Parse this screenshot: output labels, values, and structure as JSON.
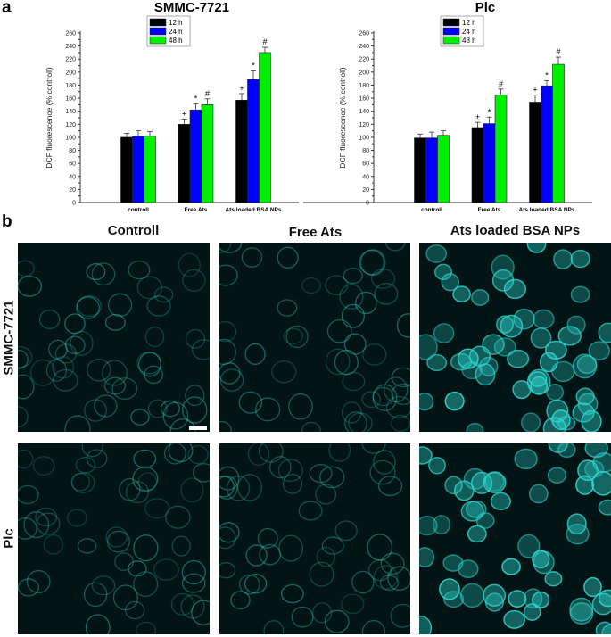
{
  "panel_labels": {
    "a": "a",
    "b": "b"
  },
  "chart_data": [
    {
      "type": "bar",
      "title": "SMMC-7721",
      "ylabel": "DCF fluorescence (% controll)",
      "xlabel": "",
      "ylim": [
        0,
        260
      ],
      "yticks": [
        0,
        20,
        40,
        60,
        80,
        100,
        120,
        140,
        160,
        180,
        200,
        220,
        240,
        260
      ],
      "categories": [
        "controll",
        "Free Ats",
        "Ats loaded BSA NPs"
      ],
      "series": [
        {
          "name": "12 h",
          "color": "#000000",
          "values": [
            100,
            120,
            157
          ],
          "errors": [
            6,
            8,
            10
          ],
          "markers": [
            "",
            "+",
            "+"
          ]
        },
        {
          "name": "24 h",
          "color": "#0000ff",
          "values": [
            102,
            142,
            189
          ],
          "errors": [
            8,
            9,
            13
          ],
          "markers": [
            "",
            "*",
            "*"
          ]
        },
        {
          "name": "48 h",
          "color": "#00ee00",
          "values": [
            102,
            150,
            230
          ],
          "errors": [
            7,
            9,
            8
          ],
          "markers": [
            "",
            "#",
            "#"
          ]
        }
      ],
      "legend": "top-center",
      "grid": false
    },
    {
      "type": "bar",
      "title": "Plc",
      "ylabel": "DCF fluorescence (% controll)",
      "xlabel": "",
      "ylim": [
        0,
        260
      ],
      "yticks": [
        0,
        20,
        40,
        60,
        80,
        100,
        120,
        140,
        160,
        180,
        200,
        220,
        240,
        260
      ],
      "categories": [
        "controll",
        "Free Ats",
        "Ats loaded BSA NPs"
      ],
      "series": [
        {
          "name": "12 h",
          "color": "#000000",
          "values": [
            99,
            115,
            154
          ],
          "errors": [
            6,
            8,
            11
          ],
          "markers": [
            "",
            "+",
            "+"
          ]
        },
        {
          "name": "24 h",
          "color": "#0000ff",
          "values": [
            99,
            121,
            179
          ],
          "errors": [
            9,
            10,
            8
          ],
          "markers": [
            "",
            "*",
            "*"
          ]
        },
        {
          "name": "48 h",
          "color": "#00ee00",
          "values": [
            103,
            165,
            212
          ],
          "errors": [
            7,
            9,
            11
          ],
          "markers": [
            "",
            "#",
            "#"
          ]
        }
      ],
      "legend": "top-center",
      "grid": false
    }
  ],
  "micrographs": {
    "columns": [
      "Controll",
      "Free Ats",
      "Ats loaded BSA NPs"
    ],
    "rows": [
      "SMMC-7721",
      "Plc"
    ],
    "stain_color": "#2fd6d0",
    "scale_bar": true
  }
}
